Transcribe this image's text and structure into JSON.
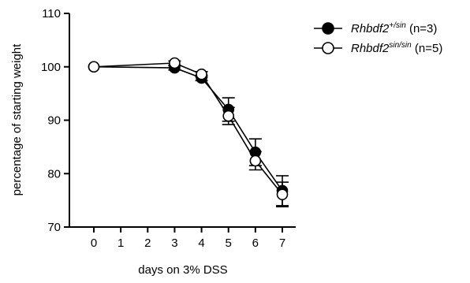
{
  "chart_data": {
    "type": "line",
    "xlabel": "days on 3% DSS",
    "ylabel": "percentage of starting weight",
    "xlim": [
      -0.6,
      7.5
    ],
    "ylim": [
      70,
      110
    ],
    "xticks": [
      0,
      1,
      2,
      3,
      4,
      5,
      6,
      7
    ],
    "yticks": [
      70,
      80,
      90,
      100,
      110
    ],
    "grid": false,
    "legend_position": "top-right",
    "series": [
      {
        "name_base": "Rhbdf2",
        "name_sup": "+/sin",
        "name_suffix": " (n=3)",
        "marker": "filled-circle",
        "color": "#000000",
        "x": [
          0,
          3,
          4,
          5,
          6,
          7
        ],
        "y": [
          100,
          99.8,
          97.9,
          92,
          84,
          76.8
        ],
        "err": [
          0,
          0.4,
          0.5,
          2.2,
          2.5,
          2.8
        ]
      },
      {
        "name_base": "Rhbdf2",
        "name_sup": "sin/sin",
        "name_suffix": " (n=5)",
        "marker": "open-circle",
        "color": "#000000",
        "x": [
          0,
          3,
          4,
          5,
          6,
          7
        ],
        "y": [
          100,
          100.7,
          98.6,
          90.8,
          82.4,
          76.1
        ],
        "err": [
          0,
          0.4,
          0.5,
          1.6,
          1.7,
          2.3
        ]
      }
    ]
  }
}
